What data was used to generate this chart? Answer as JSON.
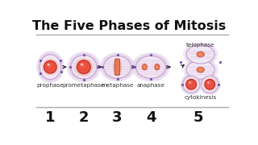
{
  "title": "The Five Phases of Mitosis",
  "title_fontsize": 11.5,
  "bg_color": "#ffffff",
  "phases": [
    "prophase",
    "prometaphase",
    "metaphase",
    "anaphase"
  ],
  "phase5_top": "telophase",
  "phase5_bottom": "cytokinesis",
  "numbers": [
    "1",
    "2",
    "3",
    "4",
    "5"
  ],
  "cell_outer_fill": "#f5eef8",
  "cell_outer_edge": "#c9a8d4",
  "cell_ring_fill": "#ede0f0",
  "arrow_color": "#222222",
  "divider_color": "#aaaaaa",
  "number_fontsize": 13,
  "label_fontsize": 5.2,
  "dot_color": "#7755aa",
  "spindle_color": "#d8b8d8",
  "chrom_fill": "#e8785a",
  "chrom_edge": "#c05030",
  "nuc_fill": "#e85040",
  "nuc_edge": "#bb2020",
  "nuc_glow": "#f08060",
  "nuc_highlight": "#ffffff"
}
